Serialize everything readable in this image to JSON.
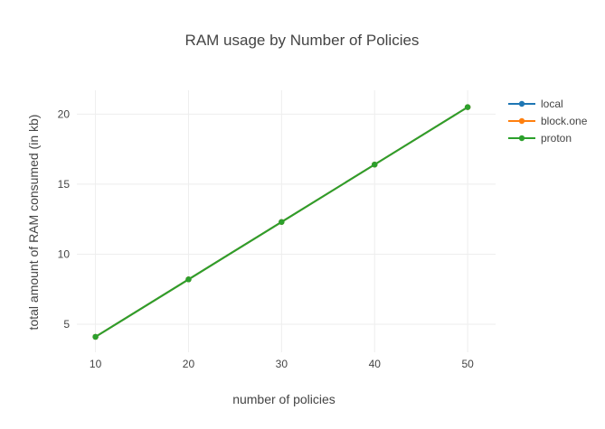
{
  "chart_data": {
    "type": "line",
    "title": "RAM usage by Number of Policies",
    "xlabel": "number of policies",
    "ylabel": "total amount of RAM consumed (in kb)",
    "x": [
      10,
      20,
      30,
      40,
      50
    ],
    "xticks": [
      10,
      20,
      30,
      40,
      50
    ],
    "yticks": [
      5,
      10,
      15,
      20
    ],
    "xlim": [
      8,
      53
    ],
    "ylim": [
      3,
      21.7
    ],
    "grid": true,
    "legend_position": "top-right",
    "series": [
      {
        "name": "local",
        "color": "#1f77b4",
        "values": [
          4.1,
          8.2,
          12.3,
          16.4,
          20.5
        ]
      },
      {
        "name": "block.one",
        "color": "#ff7f0e",
        "values": [
          4.1,
          8.2,
          12.3,
          16.4,
          20.5
        ]
      },
      {
        "name": "proton",
        "color": "#2ca02c",
        "values": [
          4.1,
          8.2,
          12.3,
          16.4,
          20.5
        ]
      }
    ]
  }
}
